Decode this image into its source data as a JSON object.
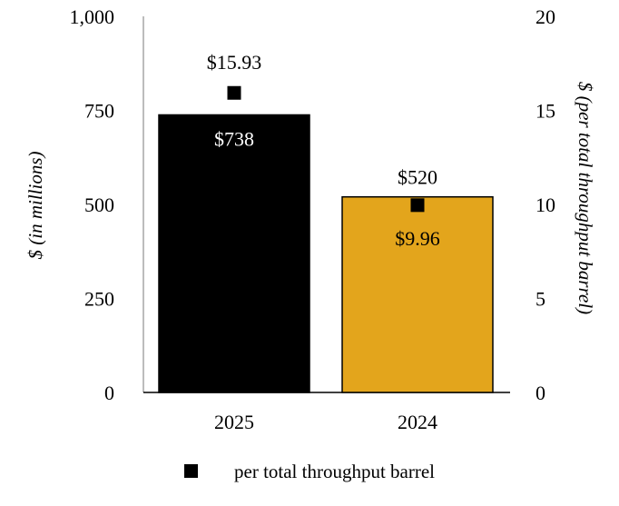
{
  "chart_data": {
    "type": "bar",
    "categories": [
      "2025",
      "2024"
    ],
    "series": [
      {
        "values": [
          738,
          520
        ],
        "value_labels": [
          "$738",
          "$520"
        ],
        "colors": [
          "#000000",
          "#E3A51C"
        ],
        "axis": "left"
      },
      {
        "name": "per total throughput barrel",
        "type": "scatter",
        "values": [
          15.93,
          9.96
        ],
        "value_labels": [
          "$15.93",
          "$9.96"
        ],
        "marker": "square",
        "color": "#000000",
        "axis": "right"
      }
    ],
    "ylabel": "$ (in millions)",
    "ylabel_right": "$ (per total throughput barrel)",
    "ylim": [
      0,
      1000
    ],
    "ylim_right": [
      0,
      20
    ],
    "yticks": [
      "0",
      "250",
      "500",
      "750",
      "1,000"
    ],
    "yticks_right": [
      "0",
      "5",
      "10",
      "15",
      "20"
    ],
    "grid": false,
    "legend": {
      "position": "bottom",
      "label": "per total throughput barrel"
    }
  }
}
